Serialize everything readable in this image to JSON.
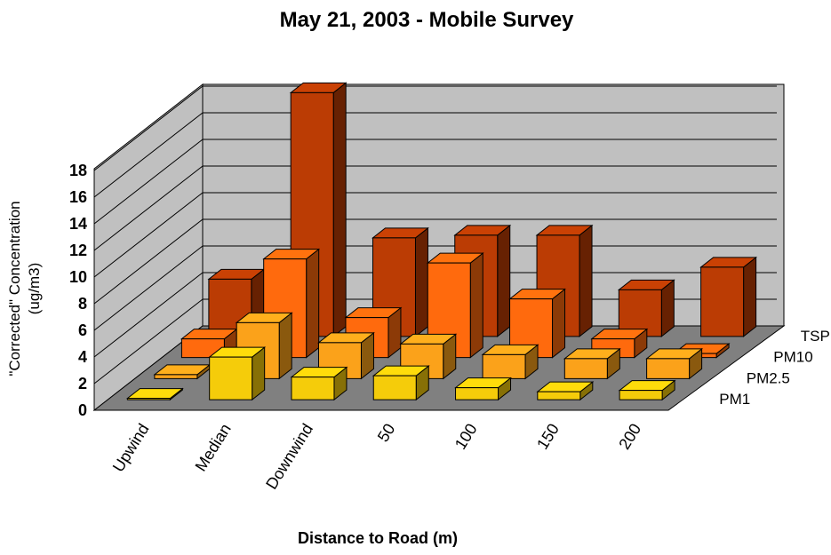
{
  "chart_data": {
    "type": "bar",
    "subtype": "3d-column",
    "title": "May 21, 2003 - Mobile Survey",
    "xlabel": "Distance to Road (m)",
    "ylabel_line1": "\"Corrected\" Concentration",
    "ylabel_line2": "(ug/m3)",
    "ylim": [
      0,
      18
    ],
    "yticks": [
      "0",
      "2",
      "4",
      "6",
      "8",
      "10",
      "12",
      "14",
      "16",
      "18"
    ],
    "grid": true,
    "categories": [
      "Upwind",
      "Median",
      "Downwind",
      "50",
      "100",
      "150",
      "200"
    ],
    "series": [
      {
        "name": "PM1",
        "color": "#f5cc0a",
        "values": [
          0.1,
          3.2,
          1.7,
          1.8,
          0.9,
          0.6,
          0.7
        ]
      },
      {
        "name": "PM2.5",
        "color": "#fba21a",
        "values": [
          0.3,
          4.2,
          2.7,
          2.6,
          1.8,
          1.5,
          1.5
        ]
      },
      {
        "name": "PM10",
        "color": "#ff6a0d",
        "values": [
          1.4,
          7.4,
          3.0,
          7.1,
          4.4,
          1.4,
          0.3
        ]
      },
      {
        "name": "TSP",
        "color": "#bb3c04",
        "values": [
          4.3,
          18.3,
          7.4,
          7.6,
          7.6,
          3.5,
          5.2
        ]
      }
    ]
  }
}
